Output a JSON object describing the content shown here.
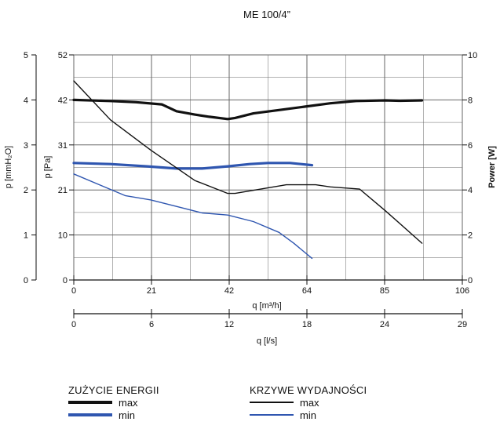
{
  "chart_data": {
    "type": "line",
    "title": "ME 100/4”",
    "grid": true,
    "x_axes": [
      {
        "label": "q [m³/h]",
        "range": [
          0,
          106
        ],
        "ticks": [
          0,
          21,
          42,
          64,
          85,
          106
        ]
      },
      {
        "label": "q [l/s]",
        "range": [
          0,
          29
        ],
        "ticks": [
          0,
          6,
          12,
          18,
          24,
          29
        ]
      }
    ],
    "y_axes": [
      {
        "label": "p [mmH₂O]",
        "range": [
          0,
          5
        ],
        "ticks": [
          0,
          1,
          2,
          3,
          4,
          5
        ]
      },
      {
        "label": "p [Pa]",
        "range": [
          0,
          52
        ],
        "ticks": [
          0,
          10,
          21,
          31,
          42,
          52
        ]
      },
      {
        "label": "Power [W]",
        "range": [
          0,
          10
        ],
        "ticks": [
          0,
          2,
          4,
          6,
          8,
          10
        ]
      }
    ],
    "legend": {
      "energy_title": "ZUŻYCIE ENERGII",
      "performance_title": "KRZYWE WYDAJNOŚCI",
      "max_label": "max",
      "min_label": "min"
    },
    "colors": {
      "max": "#111111",
      "min": "#2f56b0",
      "grid": "#666666"
    },
    "series": [
      {
        "group": "energy",
        "variant": "max",
        "axis": "power",
        "x": [
          0,
          10,
          17,
          24,
          28,
          33,
          37,
          42,
          44,
          49,
          56,
          63,
          70,
          77,
          85,
          89,
          95
        ],
        "y": [
          8.0,
          7.95,
          7.9,
          7.8,
          7.5,
          7.35,
          7.25,
          7.15,
          7.2,
          7.4,
          7.55,
          7.7,
          7.85,
          7.95,
          7.98,
          7.96,
          7.98
        ]
      },
      {
        "group": "energy",
        "variant": "min",
        "axis": "power",
        "x": [
          0,
          10,
          20,
          28,
          35,
          42,
          48,
          53,
          59,
          65
        ],
        "y": [
          5.2,
          5.15,
          5.05,
          4.95,
          4.95,
          5.05,
          5.15,
          5.2,
          5.2,
          5.1
        ]
      },
      {
        "group": "performance",
        "variant": "max",
        "axis": "pa",
        "x": [
          0,
          10,
          21,
          33,
          42,
          44,
          58,
          66,
          70,
          78,
          85,
          95
        ],
        "y": [
          46,
          37,
          30,
          23,
          20,
          20,
          22,
          22,
          21.5,
          21,
          16,
          8.5
        ]
      },
      {
        "group": "performance",
        "variant": "min",
        "axis": "pa",
        "x": [
          0,
          7,
          14,
          21,
          28,
          35,
          42,
          49,
          56,
          60,
          65
        ],
        "y": [
          24.5,
          22,
          19.5,
          18.5,
          17,
          15.5,
          15,
          13.5,
          11,
          8.5,
          5
        ]
      }
    ]
  }
}
